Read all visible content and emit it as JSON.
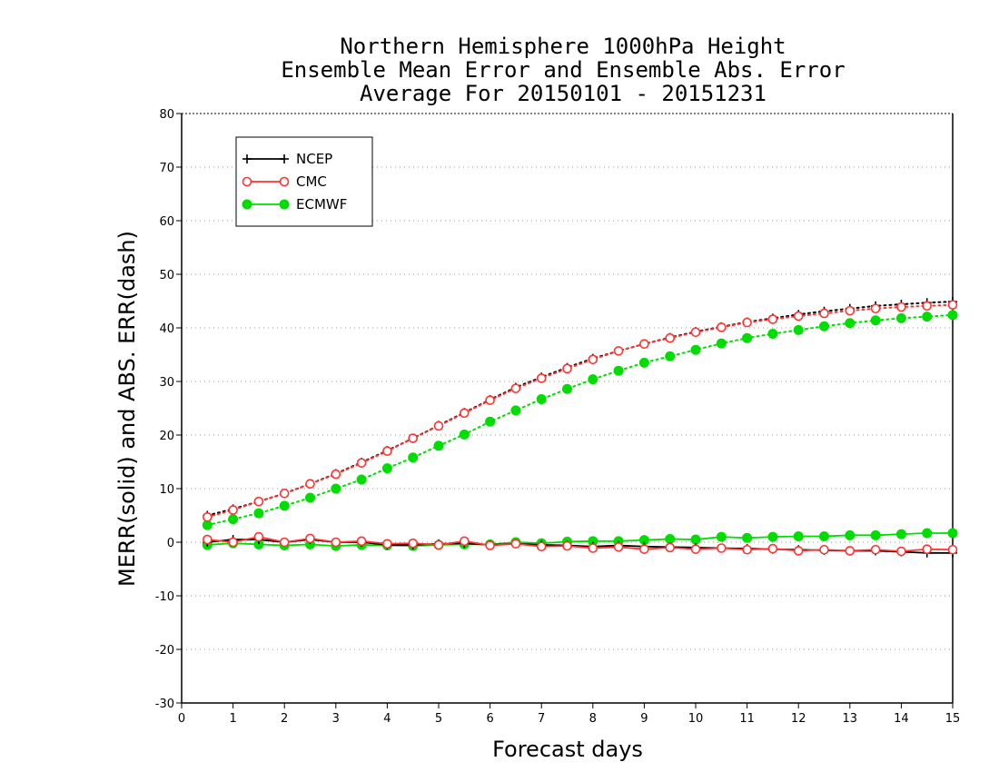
{
  "chart_data": {
    "type": "line",
    "title_lines": [
      "Northern Hemisphere 1000hPa Height",
      "Ensemble Mean Error and Ensemble Abs. Error",
      "Average For 20150101 - 20151231"
    ],
    "xlabel": "Forecast days",
    "ylabel": "MERR(solid) and ABS. ERR(dash)",
    "xlim": [
      0,
      15
    ],
    "ylim": [
      -30,
      80
    ],
    "xticks": [
      0,
      1,
      2,
      3,
      4,
      5,
      6,
      7,
      8,
      9,
      10,
      11,
      12,
      13,
      14,
      15
    ],
    "yticks": [
      -30,
      -20,
      -10,
      0,
      10,
      20,
      30,
      40,
      50,
      60,
      70,
      80
    ],
    "grid": "horizontal dotted",
    "legend_position": "top-left",
    "x": [
      0.5,
      1,
      1.5,
      2,
      2.5,
      3,
      3.5,
      4,
      4.5,
      5,
      5.5,
      6,
      6.5,
      7,
      7.5,
      8,
      8.5,
      9,
      9.5,
      10,
      10.5,
      11,
      11.5,
      12,
      12.5,
      13,
      13.5,
      14,
      14.5,
      15
    ],
    "series": [
      {
        "name": "NCEP",
        "color": "#000000",
        "marker": "plus",
        "mean_error": [
          0,
          0.5,
          0.5,
          0,
          0.5,
          0,
          0,
          -0.5,
          -0.5,
          -0.3,
          -0.2,
          -0.5,
          -0.3,
          -0.5,
          -0.6,
          -0.8,
          -0.6,
          -0.8,
          -0.9,
          -1.0,
          -1.1,
          -1.2,
          -1.3,
          -1.4,
          -1.5,
          -1.6,
          -1.6,
          -1.8,
          -2.0,
          -2.0
        ],
        "abs_error": [
          5,
          6.2,
          7.6,
          9.1,
          10.9,
          12.8,
          14.9,
          17.1,
          19.4,
          21.8,
          24.2,
          26.6,
          28.9,
          30.8,
          32.6,
          34.3,
          35.7,
          37.0,
          38.2,
          39.3,
          40.2,
          41.1,
          41.8,
          42.5,
          43.1,
          43.6,
          44.1,
          44.4,
          44.7,
          44.9
        ]
      },
      {
        "name": "CMC",
        "color": "#ff3333",
        "marker": "open-circle",
        "mean_error": [
          0.5,
          0,
          1.0,
          0,
          0.7,
          0,
          0.2,
          -0.3,
          -0.2,
          -0.5,
          0.2,
          -0.6,
          -0.3,
          -0.8,
          -0.7,
          -1.1,
          -0.9,
          -1.3,
          -1.0,
          -1.3,
          -1.1,
          -1.4,
          -1.2,
          -1.6,
          -1.4,
          -1.6,
          -1.4,
          -1.7,
          -1.3,
          -1.4
        ],
        "abs_error": [
          4.7,
          6.0,
          7.6,
          9.1,
          10.9,
          12.7,
          14.8,
          17.0,
          19.4,
          21.7,
          24.1,
          26.5,
          28.7,
          30.6,
          32.4,
          34.1,
          35.7,
          37.0,
          38.1,
          39.2,
          40.1,
          41.0,
          41.6,
          42.2,
          42.7,
          43.2,
          43.6,
          43.9,
          44.1,
          44.3
        ]
      },
      {
        "name": "ECMWF",
        "color": "#00dd00",
        "marker": "filled-circle",
        "mean_error": [
          -0.5,
          -0.2,
          -0.4,
          -0.6,
          -0.4,
          -0.7,
          -0.5,
          -0.6,
          -0.7,
          -0.5,
          -0.4,
          -0.4,
          0,
          -0.2,
          0.1,
          0.2,
          0.2,
          0.4,
          0.6,
          0.5,
          1.0,
          0.8,
          1.0,
          1.1,
          1.1,
          1.3,
          1.3,
          1.5,
          1.7,
          1.7
        ],
        "abs_error": [
          3.2,
          4.3,
          5.4,
          6.8,
          8.3,
          10.0,
          11.7,
          13.8,
          15.8,
          18.0,
          20.1,
          22.5,
          24.6,
          26.7,
          28.6,
          30.4,
          32.0,
          33.5,
          34.7,
          35.9,
          37.1,
          38.1,
          38.9,
          39.6,
          40.3,
          40.9,
          41.4,
          41.8,
          42.1,
          42.4
        ]
      }
    ]
  }
}
